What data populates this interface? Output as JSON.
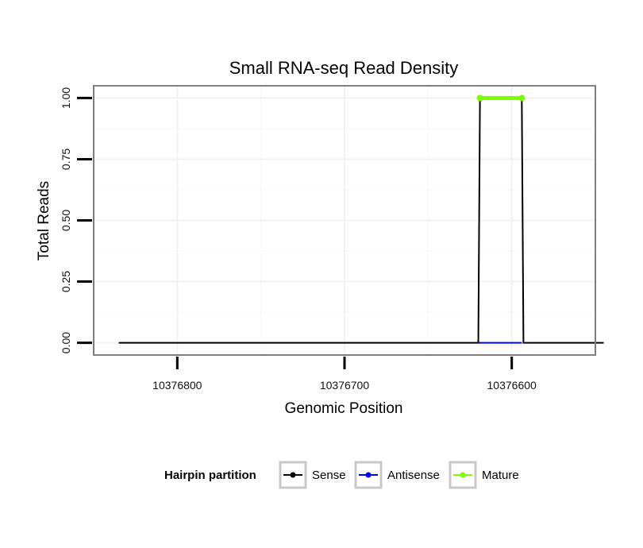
{
  "chart_data": {
    "type": "line",
    "title": "Small RNA-seq Read Density",
    "xlabel": "Genomic Position",
    "ylabel": "Total Reads",
    "x_reversed": true,
    "xlim": [
      10376850,
      10376550
    ],
    "ylim": [
      -0.05,
      1.05
    ],
    "x_ticks": [
      10376800,
      10376700,
      10376600
    ],
    "x_tick_labels": [
      "10376800",
      "10376700",
      "10376600"
    ],
    "y_ticks": [
      0,
      0.25,
      0.5,
      0.75,
      1
    ],
    "y_tick_labels": [
      "0.00",
      "0.25",
      "0.50",
      "0.75",
      "1.00"
    ],
    "grid": true,
    "legend": {
      "title": "Hairpin partition",
      "position": "bottom",
      "entries": [
        "Sense",
        "Antisense",
        "Mature"
      ]
    },
    "series": [
      {
        "name": "Sense",
        "color": "#000000",
        "x": [
          10376835,
          10376620,
          10376619,
          10376594,
          10376593,
          10376545
        ],
        "y": [
          0,
          0,
          1,
          1,
          0,
          0
        ]
      },
      {
        "name": "Antisense",
        "color": "#0000ff",
        "x": [
          10376620,
          10376594
        ],
        "y": [
          0,
          0
        ]
      },
      {
        "name": "Mature",
        "color": "#7cfc00",
        "x": [
          10376619,
          10376594
        ],
        "y": [
          1,
          1
        ]
      }
    ]
  }
}
